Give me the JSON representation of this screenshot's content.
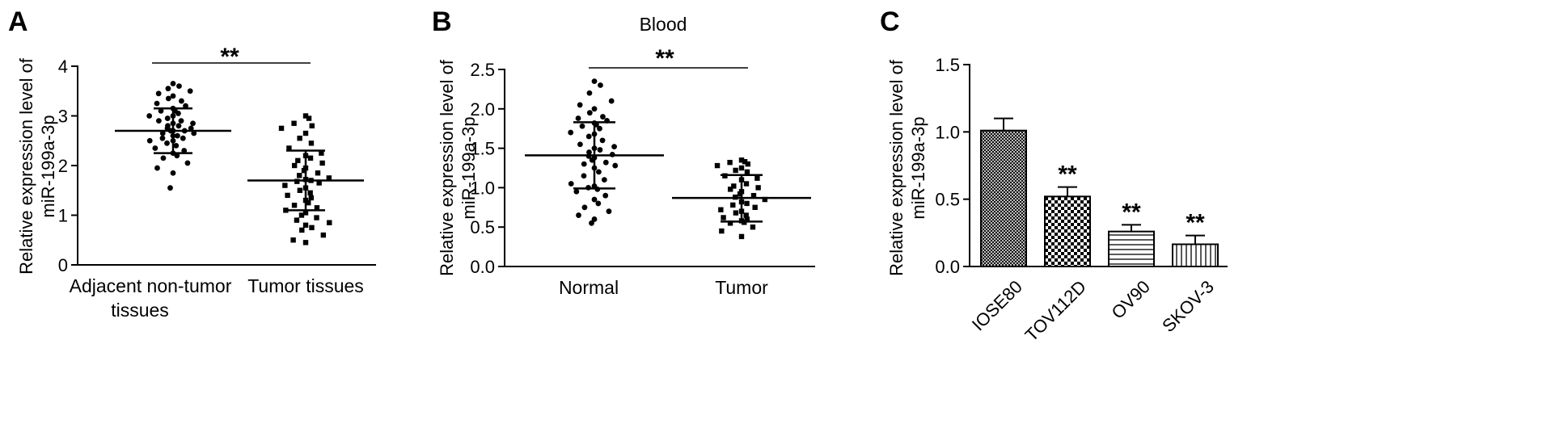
{
  "figure": {
    "chart_data": [
      {
        "panel_label": "A",
        "type": "scatter",
        "title": "",
        "ylabel_lines": [
          "Relative expression level of",
          "miR-199a-3p"
        ],
        "ylim": [
          0,
          4
        ],
        "yticks": [
          "0",
          "1",
          "2",
          "3",
          "4"
        ],
        "categories": [
          {
            "label_lines": [
              "Adjacent non-tumor",
              "tissues"
            ]
          },
          {
            "label_lines": [
              "Tumor tissues"
            ]
          }
        ],
        "grid": false,
        "significance": "**",
        "series": [
          {
            "marker": "circle",
            "mean": 2.7,
            "sd_low": 2.25,
            "sd_high": 3.15,
            "points": [
              3.65,
              3.6,
              3.55,
              3.5,
              3.45,
              3.4,
              3.35,
              3.3,
              3.25,
              3.2,
              3.15,
              3.1,
              3.1,
              3.05,
              3.0,
              3.0,
              2.95,
              2.9,
              2.9,
              2.85,
              2.85,
              2.8,
              2.8,
              2.75,
              2.75,
              2.7,
              2.7,
              2.7,
              2.65,
              2.65,
              2.6,
              2.6,
              2.55,
              2.55,
              2.5,
              2.5,
              2.45,
              2.4,
              2.35,
              2.3,
              2.25,
              2.2,
              2.15,
              2.05,
              1.95,
              1.85,
              1.55
            ]
          },
          {
            "marker": "square",
            "mean": 1.7,
            "sd_low": 1.1,
            "sd_high": 2.3,
            "points": [
              3.0,
              2.95,
              2.85,
              2.8,
              2.75,
              2.65,
              2.55,
              2.45,
              2.35,
              2.25,
              2.2,
              2.15,
              2.1,
              2.05,
              2.0,
              1.95,
              1.9,
              1.85,
              1.8,
              1.75,
              1.72,
              1.7,
              1.68,
              1.65,
              1.6,
              1.55,
              1.5,
              1.45,
              1.4,
              1.35,
              1.3,
              1.25,
              1.2,
              1.15,
              1.1,
              1.05,
              1.0,
              0.95,
              0.9,
              0.85,
              0.8,
              0.75,
              0.7,
              0.6,
              0.5,
              0.45
            ]
          }
        ]
      },
      {
        "panel_label": "B",
        "type": "scatter",
        "title": "Blood",
        "ylabel_lines": [
          "Relative expression level of",
          "miR-199a-3p"
        ],
        "ylim": [
          0,
          2.5
        ],
        "yticks": [
          "0.0",
          "0.5",
          "1.0",
          "1.5",
          "2.0",
          "2.5"
        ],
        "categories": [
          {
            "label_lines": [
              "Normal"
            ]
          },
          {
            "label_lines": [
              "Tumor"
            ]
          }
        ],
        "grid": false,
        "significance": "**",
        "series": [
          {
            "marker": "circle",
            "mean": 1.41,
            "sd_low": 0.99,
            "sd_high": 1.83,
            "points": [
              2.35,
              2.3,
              2.2,
              2.1,
              2.05,
              2.0,
              1.95,
              1.9,
              1.88,
              1.85,
              1.82,
              1.8,
              1.78,
              1.75,
              1.7,
              1.68,
              1.65,
              1.6,
              1.55,
              1.52,
              1.5,
              1.48,
              1.45,
              1.42,
              1.4,
              1.38,
              1.35,
              1.32,
              1.3,
              1.28,
              1.25,
              1.2,
              1.15,
              1.1,
              1.05,
              1.02,
              1.0,
              0.98,
              0.95,
              0.9,
              0.85,
              0.8,
              0.75,
              0.7,
              0.65,
              0.6,
              0.55
            ]
          },
          {
            "marker": "square",
            "mean": 0.87,
            "sd_low": 0.57,
            "sd_high": 1.16,
            "points": [
              1.35,
              1.33,
              1.32,
              1.3,
              1.28,
              1.25,
              1.22,
              1.2,
              1.15,
              1.12,
              1.1,
              1.05,
              1.02,
              1.0,
              0.98,
              0.95,
              0.92,
              0.9,
              0.88,
              0.85,
              0.82,
              0.8,
              0.78,
              0.75,
              0.72,
              0.7,
              0.68,
              0.65,
              0.62,
              0.6,
              0.58,
              0.56,
              0.55,
              0.5,
              0.45,
              0.38
            ]
          }
        ]
      },
      {
        "panel_label": "C",
        "type": "bar",
        "title": "",
        "ylabel_lines": [
          "Relative expression level of",
          "miR-199a-3p"
        ],
        "ylim": [
          0,
          1.5
        ],
        "yticks": [
          "0.0",
          "0.5",
          "1.0",
          "1.5"
        ],
        "categories": [
          "IOSE80",
          "TOV112D",
          "OV90",
          "SKOV-3"
        ],
        "grid": false,
        "series": [
          {
            "values": [
              1.01,
              0.52,
              0.26,
              0.165
            ],
            "errors": [
              0.09,
              0.07,
              0.05,
              0.065
            ],
            "fill_patterns": [
              "fine-crosshatch",
              "checkerboard",
              "horizontal-lines",
              "vertical-lines"
            ]
          }
        ],
        "annotations": [
          "",
          "**",
          "**",
          "**"
        ]
      }
    ]
  }
}
